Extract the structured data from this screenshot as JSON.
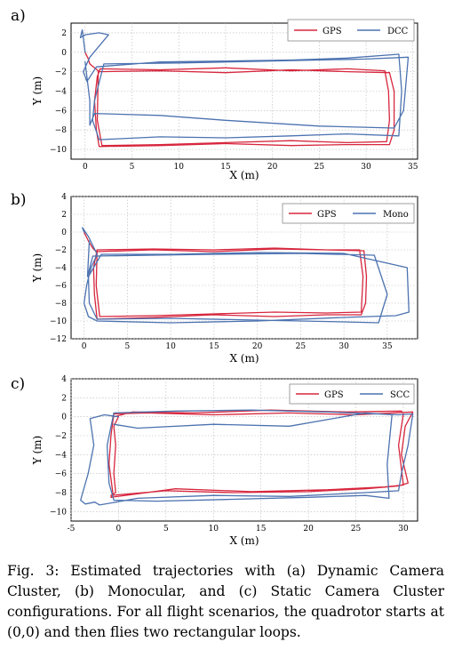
{
  "caption": "Fig. 3: Estimated trajectories with (a) Dynamic Camera Cluster, (b) Monocular, and (c) Static Camera Cluster configurations. For all flight scenarios, the quadrotor starts at (0,0) and then flies two rectangular loops.",
  "colors": {
    "gps": "#d7263d",
    "estimate": "#4c72b0",
    "grid": "#b8b8b8"
  },
  "chart_data": [
    {
      "type": "line",
      "panel_label": "a)",
      "xlabel": "X (m)",
      "ylabel": "Y (m)",
      "xlim": [
        -1.5,
        35.5
      ],
      "ylim": [
        -11,
        3
      ],
      "xticks": [
        0,
        5,
        10,
        15,
        20,
        25,
        30,
        35
      ],
      "yticks": [
        2,
        0,
        -2,
        -4,
        -6,
        -8,
        -10
      ],
      "grid": true,
      "legend_position": "top-right",
      "series": [
        {
          "name": "GPS",
          "color": "#d7263d",
          "x": [
            0,
            0.3,
            0.5,
            1.0,
            1.4,
            1.5,
            8,
            15,
            22,
            28,
            32.5,
            33.0,
            33.0,
            32.5,
            28,
            22,
            15,
            8,
            1.5,
            1.2,
            1.0,
            1.3,
            1.6,
            8,
            15,
            22,
            28,
            32.0,
            32.4,
            32.5,
            32.2,
            28,
            22,
            15,
            8,
            1.8,
            1.3,
            1.4
          ],
          "y": [
            0,
            -0.6,
            -1.2,
            -1.6,
            -1.9,
            -2.0,
            -1.9,
            -2.1,
            -1.8,
            -2.0,
            -2.1,
            -4,
            -8,
            -9.5,
            -9.5,
            -9.6,
            -9.4,
            -9.6,
            -9.7,
            -8,
            -5,
            -2.5,
            -1.7,
            -1.8,
            -1.6,
            -1.9,
            -1.7,
            -1.9,
            -4,
            -7,
            -9.2,
            -9.3,
            -9.1,
            -9.3,
            -9.5,
            -9.6,
            -7,
            -2
          ]
        },
        {
          "name": "DCC",
          "color": "#4c72b0",
          "x": [
            0,
            -0.3,
            -0.5,
            0,
            1.5,
            2.5,
            0.5,
            -0.2,
            0.2,
            1.2,
            8,
            15,
            22,
            28,
            33.5,
            33.8,
            33.5,
            28,
            22,
            15,
            8,
            1.5,
            0.8,
            1.0,
            2.0,
            10,
            20,
            30,
            34.5,
            34.0,
            33.0,
            25,
            15,
            8,
            1.0,
            0.5,
            0.5,
            0
          ],
          "y": [
            0,
            2.3,
            1.5,
            1.8,
            2.0,
            1.8,
            -0.5,
            -2,
            -3,
            -1.5,
            -1.0,
            -0.9,
            -0.8,
            -0.6,
            -0.2,
            -4,
            -8.6,
            -8.4,
            -8.6,
            -8.8,
            -8.7,
            -9.0,
            -7,
            -5,
            -1.2,
            -1.1,
            -0.9,
            -0.7,
            -0.5,
            -6,
            -7.8,
            -7.6,
            -7.0,
            -6.5,
            -6.3,
            -7.5,
            -5,
            -1
          ]
        }
      ]
    },
    {
      "type": "line",
      "panel_label": "b)",
      "xlabel": "X (m)",
      "ylabel": "Y (m)",
      "xlim": [
        -1.5,
        38.5
      ],
      "ylim": [
        -12,
        4
      ],
      "xticks": [
        0,
        5,
        10,
        15,
        20,
        25,
        30,
        35
      ],
      "yticks": [
        4,
        2,
        0,
        -2,
        -4,
        -6,
        -8,
        -10,
        -12
      ],
      "grid": true,
      "legend_position": "top-right",
      "series": [
        {
          "name": "GPS",
          "color": "#d7263d",
          "x": [
            0,
            0.5,
            1.0,
            1.4,
            8,
            15,
            22,
            28,
            32.3,
            32.6,
            32.5,
            32.0,
            28,
            22,
            15,
            8,
            1.5,
            1.2,
            1.1,
            1.5,
            8,
            15,
            22,
            28,
            31.8,
            32.2,
            32.0,
            28,
            22,
            15,
            8,
            1.8,
            1.4,
            1.5
          ],
          "y": [
            0,
            -1.0,
            -1.8,
            -2.2,
            -2.0,
            -2.2,
            -1.9,
            -2.0,
            -2.1,
            -5,
            -8,
            -9.3,
            -9.3,
            -9.5,
            -9.3,
            -9.6,
            -9.8,
            -7,
            -4,
            -2.0,
            -1.9,
            -2.0,
            -1.8,
            -2.0,
            -2.0,
            -5,
            -9.0,
            -9.1,
            -9.0,
            -9.2,
            -9.4,
            -9.5,
            -6,
            -2
          ]
        },
        {
          "name": "Mono",
          "color": "#4c72b0",
          "x": [
            0,
            -0.2,
            0.5,
            1.0,
            1.5,
            0.8,
            0.3,
            0,
            0.5,
            1.5,
            10,
            20,
            30,
            36,
            37.5,
            37.3,
            30,
            20,
            10,
            2,
            0.5,
            0.6,
            1.5,
            10,
            20,
            30,
            34,
            35.0,
            33.5,
            25,
            15,
            8,
            1.0,
            0.4,
            0.6
          ],
          "y": [
            0,
            0.5,
            -0.5,
            -1.5,
            -2.5,
            -4,
            -6,
            -8,
            -9.5,
            -10.0,
            -10.2,
            -10.0,
            -9.6,
            -9.4,
            -9,
            -4,
            -2.4,
            -2.3,
            -2.5,
            -2.5,
            -5,
            -8,
            -9.8,
            -9.7,
            -9.9,
            -10.1,
            -10.2,
            -7,
            -2.6,
            -2.4,
            -2.5,
            -2.6,
            -2.7,
            -5,
            -1
          ]
        }
      ]
    },
    {
      "type": "line",
      "panel_label": "c)",
      "xlabel": "X (m)",
      "ylabel": "Y (m)",
      "xlim": [
        -5,
        31.5
      ],
      "ylim": [
        -11,
        4
      ],
      "xticks": [
        -5,
        0,
        5,
        10,
        15,
        20,
        25,
        30
      ],
      "yticks": [
        4,
        2,
        0,
        -2,
        -4,
        -6,
        -8,
        -10
      ],
      "grid": true,
      "legend_position": "top-right",
      "series": [
        {
          "name": "GPS",
          "color": "#d7263d",
          "x": [
            0,
            -0.5,
            -0.3,
            -0.5,
            -0.3,
            -0.8,
            5,
            12,
            20,
            26,
            29.5,
            30.5,
            29.8,
            30.2,
            31.0,
            25,
            18,
            10,
            3,
            -0.5,
            -0.8,
            -1.0,
            -0.6,
            -0.8,
            6,
            14,
            22,
            28,
            30.0,
            29.5,
            30.0,
            29.8,
            24,
            16,
            8,
            1.5,
            -0.5
          ],
          "y": [
            0,
            -1,
            -3,
            -6,
            -8,
            -8.3,
            -7.8,
            -8.0,
            -7.9,
            -7.6,
            -7.3,
            -7.0,
            -4,
            -1,
            0.5,
            0.2,
            0.4,
            0.2,
            0.4,
            0.3,
            -2,
            -5,
            -8,
            -8.5,
            -7.6,
            -7.9,
            -7.7,
            -7.4,
            -7.2,
            -3,
            0.3,
            0.6,
            0.5,
            0.7,
            0.4,
            0.5,
            0
          ]
        },
        {
          "name": "SCC",
          "color": "#4c72b0",
          "x": [
            0,
            -1.5,
            -3.0,
            -2.6,
            -3.2,
            -4.0,
            -3.5,
            -2.5,
            -2.0,
            2,
            10,
            18,
            26,
            29.5,
            29.8,
            30.5,
            31.0,
            29.5,
            22,
            14,
            6,
            -0.5,
            -1.2,
            -1.0,
            -0.5,
            4,
            12,
            20,
            26,
            28.5,
            28.3,
            28.8,
            26,
            18,
            10,
            2,
            -0.5
          ],
          "y": [
            0,
            0.2,
            -0.2,
            -3,
            -6,
            -8.8,
            -9.2,
            -9.0,
            -9.3,
            -8.6,
            -8.3,
            -8.4,
            -8.0,
            -7.8,
            -6,
            -3,
            0.3,
            0.2,
            0.5,
            0.7,
            0.6,
            0.4,
            -3,
            -7,
            -8.8,
            -8.9,
            -8.7,
            -8.5,
            -8.3,
            -8.6,
            -5,
            0.2,
            0.4,
            -1.0,
            -0.8,
            -1.2,
            -0.8
          ]
        }
      ]
    }
  ]
}
